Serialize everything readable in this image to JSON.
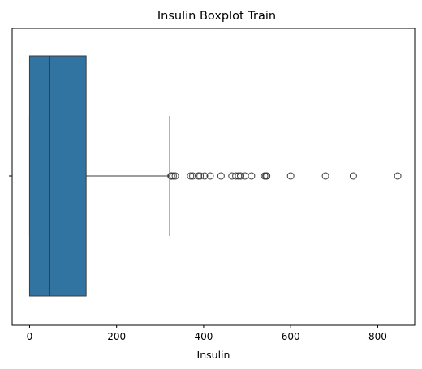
{
  "chart_data": {
    "type": "box",
    "orientation": "horizontal",
    "title": "Insulin Boxplot Train",
    "xlabel": "Insulin",
    "ylabel": "",
    "xlim": [
      -40,
      885
    ],
    "xticks": [
      0,
      200,
      400,
      600,
      800
    ],
    "grid": false,
    "legend": null,
    "colors": {
      "box": "#3274a1",
      "line": "#3d3d3d"
    },
    "series": [
      {
        "min": 0,
        "q1": 0,
        "median": 45,
        "q3": 130,
        "whisker_high": 322,
        "outliers": [
          325,
          326,
          330,
          335,
          370,
          375,
          388,
          392,
          402,
          415,
          440,
          465,
          474,
          480,
          485,
          495,
          510,
          540,
          543,
          545,
          600,
          680,
          744,
          846
        ]
      }
    ]
  }
}
